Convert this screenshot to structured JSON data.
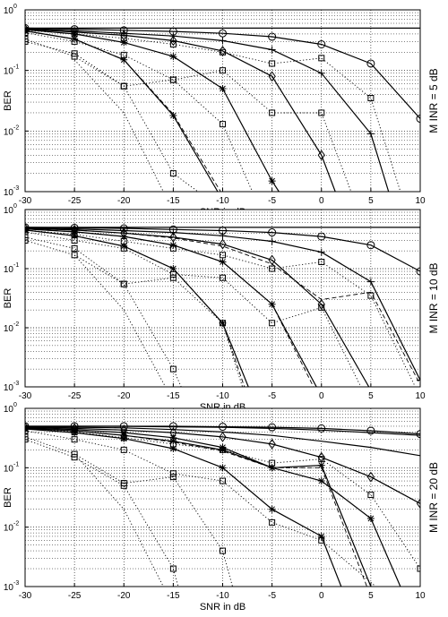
{
  "chart_data": [
    {
      "type": "line",
      "xlabel": "SNR in dB",
      "ylabel": "BER",
      "side_label": "M INR = 5 dB",
      "y_scale": "log",
      "xlim": [
        -30,
        10
      ],
      "ylim": [
        0.001,
        1
      ],
      "x_ticks": [
        -30,
        -25,
        -20,
        -15,
        -10,
        -5,
        0,
        5,
        10
      ],
      "y_ticks": [
        {
          "v": 0.001,
          "exp": "-3"
        },
        {
          "v": 0.01,
          "exp": "-2"
        },
        {
          "v": 0.1,
          "exp": "-1"
        },
        {
          "v": 1,
          "exp": "0"
        }
      ],
      "grid": true,
      "series": [
        {
          "marker": "none",
          "style": "solid",
          "x": [
            -30,
            -25,
            -20,
            -15,
            -10,
            -5,
            0,
            5,
            10
          ],
          "y": [
            0.5,
            0.5,
            0.5,
            0.5,
            0.5,
            0.5,
            0.5,
            0.5,
            0.5
          ]
        },
        {
          "marker": "circle",
          "style": "solid",
          "x": [
            -30,
            -25,
            -20,
            -15,
            -10,
            -5,
            0,
            5,
            10
          ],
          "y": [
            0.5,
            0.48,
            0.46,
            0.44,
            0.41,
            0.36,
            0.27,
            0.13,
            0.016
          ]
        },
        {
          "marker": "plus",
          "style": "solid",
          "x": [
            -30,
            -25,
            -20,
            -15,
            -10,
            -5,
            0,
            5,
            6.8
          ],
          "y": [
            0.49,
            0.45,
            0.41,
            0.37,
            0.31,
            0.22,
            0.09,
            0.009,
            0.001
          ]
        },
        {
          "marker": "diamond",
          "style": "solid",
          "x": [
            -30,
            -25,
            -20,
            -15,
            -10,
            -5,
            0,
            1.4
          ],
          "y": [
            0.48,
            0.43,
            0.38,
            0.31,
            0.21,
            0.08,
            0.004,
            0.001
          ]
        },
        {
          "marker": "star",
          "style": "solid",
          "x": [
            -30,
            -25,
            -20,
            -15,
            -10,
            -5,
            -4.3
          ],
          "y": [
            0.47,
            0.4,
            0.29,
            0.17,
            0.05,
            0.0015,
            0.001
          ]
        },
        {
          "marker": "star",
          "style": "solid",
          "x": [
            -30,
            -25,
            -20,
            -15,
            -10.5
          ],
          "y": [
            0.45,
            0.33,
            0.15,
            0.018,
            0.001
          ]
        },
        {
          "marker": "none",
          "style": "dashed",
          "x": [
            -30,
            -25,
            -20,
            -15,
            -10.2
          ],
          "y": [
            0.45,
            0.33,
            0.15,
            0.019,
            0.001
          ]
        },
        {
          "marker": "square",
          "style": "dotted",
          "x": [
            -30,
            -25,
            -20,
            -15,
            -10,
            -5,
            0,
            5,
            8
          ],
          "y": [
            0.46,
            0.4,
            0.34,
            0.27,
            0.2,
            0.13,
            0.16,
            0.035,
            0.001
          ]
        },
        {
          "marker": "square",
          "style": "dotted",
          "x": [
            -30,
            -25,
            -20,
            -15,
            -10,
            -5,
            0,
            3
          ],
          "y": [
            0.42,
            0.3,
            0.18,
            0.07,
            0.1,
            0.02,
            0.02,
            0.001
          ]
        },
        {
          "marker": "square",
          "style": "dotted",
          "x": [
            -30,
            -25,
            -20,
            -15,
            -10,
            -7
          ],
          "y": [
            0.33,
            0.17,
            0.055,
            0.07,
            0.013,
            0.001
          ]
        },
        {
          "marker": "square",
          "style": "dotted",
          "x": [
            -30,
            -25,
            -20,
            -15,
            -12.5
          ],
          "y": [
            0.3,
            0.19,
            0.055,
            0.002,
            0.001
          ]
        },
        {
          "marker": "none",
          "style": "dotted",
          "x": [
            -25,
            -20,
            -16
          ],
          "y": [
            0.15,
            0.02,
            0.001
          ]
        }
      ]
    },
    {
      "type": "line",
      "xlabel": "SNR in dB",
      "ylabel": "BER",
      "side_label": "M INR = 10 dB",
      "y_scale": "log",
      "xlim": [
        -30,
        10
      ],
      "ylim": [
        0.001,
        1
      ],
      "x_ticks": [
        -30,
        -25,
        -20,
        -15,
        -10,
        -5,
        0,
        5,
        10
      ],
      "y_ticks": [
        {
          "v": 0.001,
          "exp": "-3"
        },
        {
          "v": 0.01,
          "exp": "-2"
        },
        {
          "v": 0.1,
          "exp": "-1"
        },
        {
          "v": 1,
          "exp": "0"
        }
      ],
      "grid": true,
      "series": [
        {
          "marker": "none",
          "style": "solid",
          "x": [
            -30,
            -25,
            -20,
            -15,
            -10,
            -5,
            0,
            5,
            10
          ],
          "y": [
            0.5,
            0.5,
            0.5,
            0.5,
            0.5,
            0.5,
            0.5,
            0.5,
            0.5
          ]
        },
        {
          "marker": "circle",
          "style": "solid",
          "x": [
            -30,
            -25,
            -20,
            -15,
            -10,
            -5,
            0,
            5,
            10
          ],
          "y": [
            0.5,
            0.49,
            0.48,
            0.46,
            0.44,
            0.41,
            0.35,
            0.25,
            0.09
          ]
        },
        {
          "marker": "plus",
          "style": "solid",
          "x": [
            -30,
            -25,
            -20,
            -15,
            -10,
            -5,
            0,
            5,
            10
          ],
          "y": [
            0.49,
            0.47,
            0.44,
            0.41,
            0.36,
            0.29,
            0.19,
            0.06,
            0.0013
          ]
        },
        {
          "marker": "diamond",
          "style": "solid",
          "x": [
            -30,
            -25,
            -20,
            -15,
            -10,
            -5,
            0,
            4.8
          ],
          "y": [
            0.48,
            0.45,
            0.4,
            0.34,
            0.26,
            0.14,
            0.025,
            0.001
          ]
        },
        {
          "marker": "star",
          "style": "solid",
          "x": [
            -30,
            -25,
            -20,
            -15,
            -10,
            -5,
            -0.5
          ],
          "y": [
            0.47,
            0.42,
            0.35,
            0.25,
            0.13,
            0.025,
            0.001
          ]
        },
        {
          "marker": "none",
          "style": "dashed",
          "x": [
            -30,
            -25,
            -20,
            -15,
            -10,
            -5,
            -0.8
          ],
          "y": [
            0.47,
            0.42,
            0.35,
            0.25,
            0.13,
            0.025,
            0.001
          ]
        },
        {
          "marker": "star",
          "style": "solid",
          "x": [
            -30,
            -25,
            -20,
            -15,
            -10,
            -7.4
          ],
          "y": [
            0.45,
            0.36,
            0.24,
            0.1,
            0.012,
            0.001
          ]
        },
        {
          "marker": "none",
          "style": "dashed",
          "x": [
            -30,
            -25,
            -20,
            -15,
            -10,
            -7.8
          ],
          "y": [
            0.45,
            0.36,
            0.24,
            0.1,
            0.012,
            0.001
          ]
        },
        {
          "marker": "none",
          "style": "dashed",
          "x": [
            -30,
            -25,
            -20,
            -15,
            -10,
            -5,
            0,
            5,
            10
          ],
          "y": [
            0.48,
            0.45,
            0.4,
            0.33,
            0.24,
            0.12,
            0.03,
            0.04,
            0.0011
          ]
        },
        {
          "marker": "square",
          "style": "dotted",
          "x": [
            -30,
            -25,
            -20,
            -15,
            -10,
            -5,
            0,
            5,
            9.5
          ],
          "y": [
            0.45,
            0.38,
            0.29,
            0.22,
            0.17,
            0.1,
            0.13,
            0.035,
            0.001
          ]
        },
        {
          "marker": "square",
          "style": "dotted",
          "x": [
            -30,
            -25,
            -20,
            -15,
            -10,
            -5,
            0,
            4
          ],
          "y": [
            0.42,
            0.3,
            0.22,
            0.08,
            0.07,
            0.012,
            0.022,
            0.001
          ]
        },
        {
          "marker": "square",
          "style": "dotted",
          "x": [
            -30,
            -25,
            -20,
            -15,
            -10,
            -8
          ],
          "y": [
            0.34,
            0.22,
            0.055,
            0.07,
            0.012,
            0.001
          ]
        },
        {
          "marker": "square",
          "style": "dotted",
          "x": [
            -30,
            -25,
            -20,
            -15,
            -14.2
          ],
          "y": [
            0.3,
            0.17,
            0.055,
            0.002,
            0.001
          ]
        },
        {
          "marker": "none",
          "style": "dotted",
          "x": [
            -25,
            -20,
            -15.8
          ],
          "y": [
            0.17,
            0.02,
            0.001
          ]
        }
      ]
    },
    {
      "type": "line",
      "xlabel": "SNR in dB",
      "ylabel": "BER",
      "side_label": "M INR = 20 dB",
      "y_scale": "log",
      "xlim": [
        -30,
        10
      ],
      "ylim": [
        0.001,
        1
      ],
      "x_ticks": [
        -30,
        -25,
        -20,
        -15,
        -10,
        -5,
        0,
        5,
        10
      ],
      "y_ticks": [
        {
          "v": 0.001,
          "exp": "-3"
        },
        {
          "v": 0.01,
          "exp": "-2"
        },
        {
          "v": 0.1,
          "exp": "-1"
        },
        {
          "v": 1,
          "exp": "0"
        }
      ],
      "grid": true,
      "series": [
        {
          "marker": "none",
          "style": "solid",
          "x": [
            -30,
            -25,
            -20,
            -15,
            -10,
            -5,
            0,
            5,
            10
          ],
          "y": [
            0.5,
            0.5,
            0.5,
            0.49,
            0.48,
            0.46,
            0.43,
            0.39,
            0.35
          ]
        },
        {
          "marker": "circle",
          "style": "solid",
          "x": [
            -30,
            -25,
            -20,
            -15,
            -10,
            -5,
            0,
            5,
            10
          ],
          "y": [
            0.5,
            0.5,
            0.5,
            0.5,
            0.49,
            0.48,
            0.46,
            0.42,
            0.37
          ]
        },
        {
          "marker": "none",
          "style": "solid",
          "x": [
            -30,
            -25,
            -20,
            -15,
            -10,
            -5,
            0,
            5,
            10
          ],
          "y": [
            0.49,
            0.48,
            0.47,
            0.44,
            0.4,
            0.35,
            0.28,
            0.22,
            0.16
          ]
        },
        {
          "marker": "diamond",
          "style": "solid",
          "x": [
            -30,
            -25,
            -20,
            -15,
            -10,
            -5,
            0,
            5,
            10
          ],
          "y": [
            0.48,
            0.46,
            0.43,
            0.39,
            0.33,
            0.25,
            0.15,
            0.07,
            0.025
          ]
        },
        {
          "marker": "star",
          "style": "solid",
          "x": [
            -30,
            -25,
            -20,
            -15,
            -10,
            -5,
            0,
            5,
            8
          ],
          "y": [
            0.47,
            0.44,
            0.39,
            0.32,
            0.22,
            0.1,
            0.06,
            0.014,
            0.001
          ]
        },
        {
          "marker": "star",
          "style": "solid",
          "x": [
            -30,
            -25,
            -20,
            -15,
            -10,
            -5,
            0,
            5
          ],
          "y": [
            0.46,
            0.42,
            0.35,
            0.28,
            0.2,
            0.1,
            0.11,
            0.001
          ]
        },
        {
          "marker": "none",
          "style": "dashed",
          "x": [
            -30,
            -25,
            -20,
            -15,
            -10,
            -5,
            0,
            4.6
          ],
          "y": [
            0.46,
            0.42,
            0.35,
            0.27,
            0.19,
            0.1,
            0.1,
            0.001
          ]
        },
        {
          "marker": "star",
          "style": "solid",
          "x": [
            -30,
            -25,
            -20,
            -15,
            -10,
            -5,
            0,
            2
          ],
          "y": [
            0.45,
            0.39,
            0.31,
            0.21,
            0.1,
            0.02,
            0.007,
            0.001
          ]
        },
        {
          "marker": "square",
          "style": "dotted",
          "x": [
            -30,
            -25,
            -20,
            -15,
            -10,
            -5,
            0,
            5,
            10
          ],
          "y": [
            0.46,
            0.4,
            0.32,
            0.25,
            0.2,
            0.12,
            0.14,
            0.035,
            0.002
          ]
        },
        {
          "marker": "square",
          "style": "dotted",
          "x": [
            -30,
            -25,
            -20,
            -15,
            -10,
            -5,
            0,
            5.5
          ],
          "y": [
            0.42,
            0.3,
            0.2,
            0.08,
            0.06,
            0.012,
            0.006,
            0.001
          ]
        },
        {
          "marker": "square",
          "style": "dotted",
          "x": [
            -30,
            -25,
            -20,
            -15,
            -10,
            -9
          ],
          "y": [
            0.33,
            0.17,
            0.055,
            0.07,
            0.004,
            0.001
          ]
        },
        {
          "marker": "square",
          "style": "dotted",
          "x": [
            -30,
            -25,
            -20,
            -15,
            -14.5
          ],
          "y": [
            0.3,
            0.15,
            0.05,
            0.002,
            0.001
          ]
        },
        {
          "marker": "none",
          "style": "dotted",
          "x": [
            -25,
            -20,
            -16
          ],
          "y": [
            0.17,
            0.02,
            0.001
          ]
        }
      ]
    }
  ]
}
